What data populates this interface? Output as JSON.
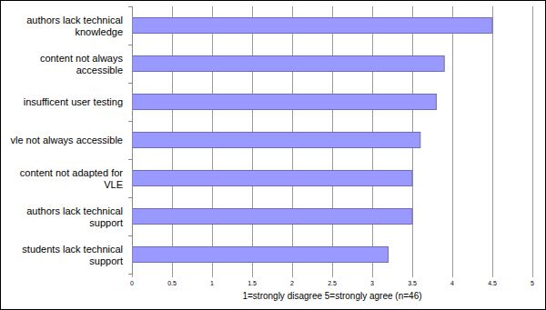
{
  "chart_data": {
    "type": "bar",
    "orientation": "horizontal",
    "categories": [
      "authors lack technical knowledge",
      "content not always accessible",
      "insufficent user testing",
      "vle not always accessible",
      "content not adapted for VLE",
      "authors lack technical support",
      "students lack technical support"
    ],
    "values": [
      4.5,
      3.9,
      3.8,
      3.6,
      3.5,
      3.5,
      3.2
    ],
    "color": "#9999ff",
    "xlim": [
      0,
      5
    ],
    "xticks": [
      0,
      0.5,
      1,
      1.5,
      2,
      2.5,
      3,
      3.5,
      4,
      4.5,
      5
    ],
    "xlabel": "1=strongly disagree 5=strongly agree (n=46)",
    "grid": true
  }
}
